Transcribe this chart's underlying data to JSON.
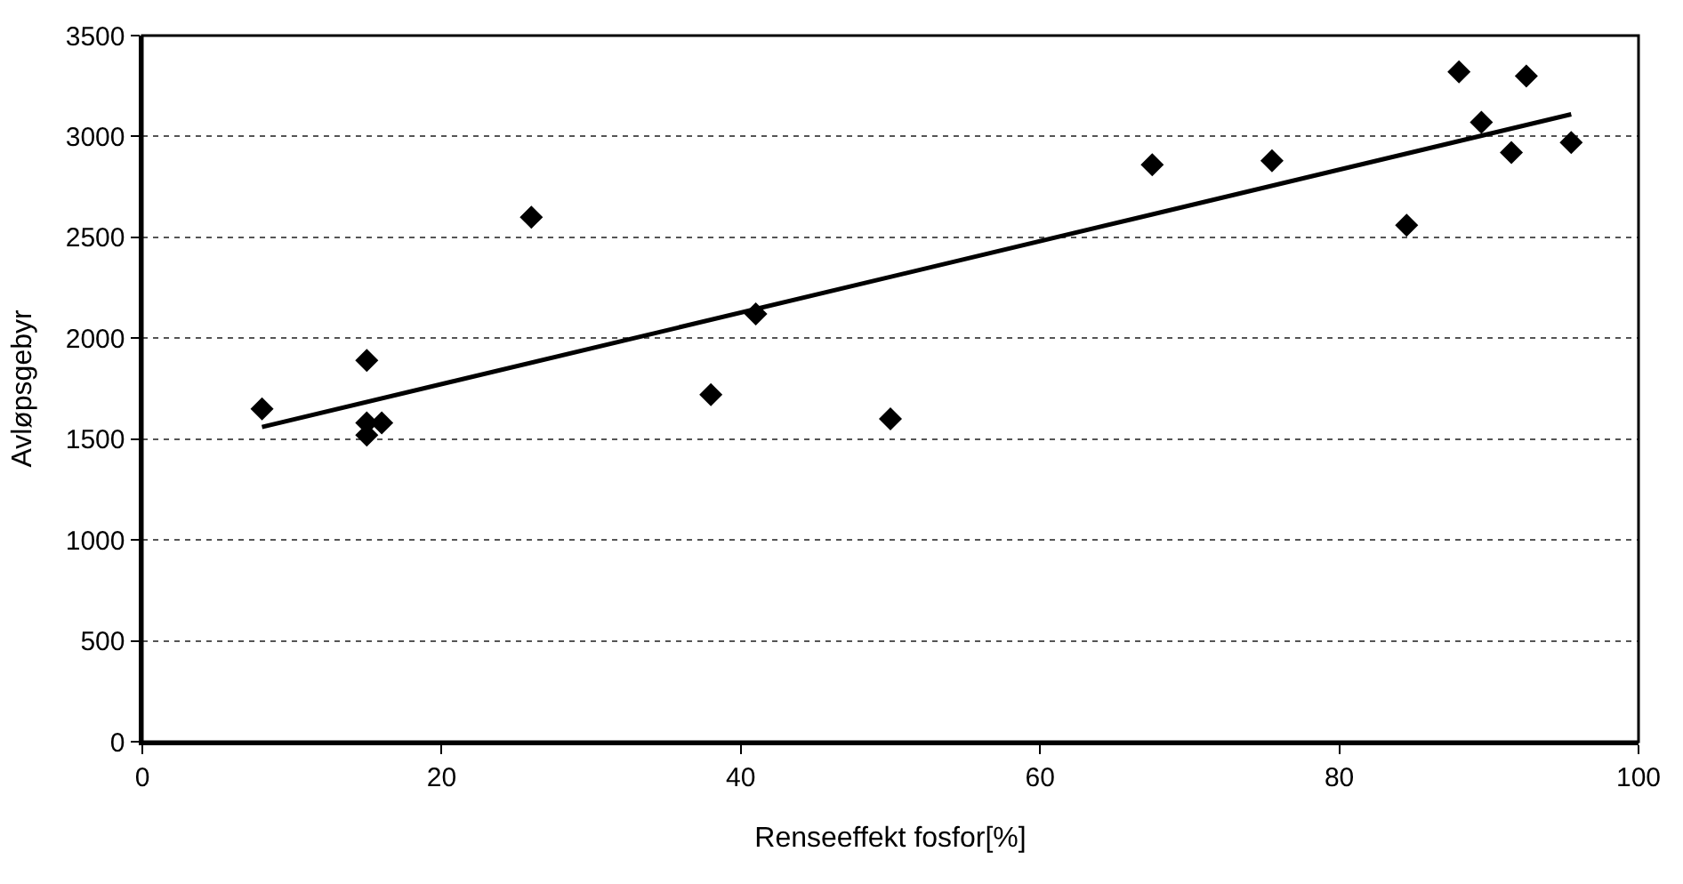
{
  "chart_data": {
    "type": "scatter",
    "xlabel": "Renseeffekt fosfor[%]",
    "ylabel": "Avløpsgebyr",
    "xlim": [
      0,
      100
    ],
    "xticks": [
      0,
      20,
      40,
      60,
      80,
      100
    ],
    "ylim": [
      0,
      3500
    ],
    "yticks": [
      0,
      500,
      1000,
      1500,
      2000,
      2500,
      3000,
      3500
    ],
    "grid": "y",
    "legend": false,
    "marker": "diamond",
    "series": [
      {
        "color": "#000000",
        "x": [
          8,
          15,
          15,
          15,
          16,
          26,
          38,
          41,
          50,
          67.5,
          75.5,
          84.5,
          88,
          89.5,
          91.5,
          92.5,
          95.5
        ],
        "values": [
          1650,
          1890,
          1580,
          1520,
          1580,
          2600,
          1720,
          2120,
          1600,
          2860,
          2880,
          2560,
          3320,
          3070,
          2920,
          3300,
          2970
        ]
      },
      {
        "type": "line",
        "color": "#000000",
        "x": [
          8,
          95.5
        ],
        "values": [
          1560,
          3110
        ],
        "marker": "none",
        "line_style": "solid"
      }
    ]
  }
}
